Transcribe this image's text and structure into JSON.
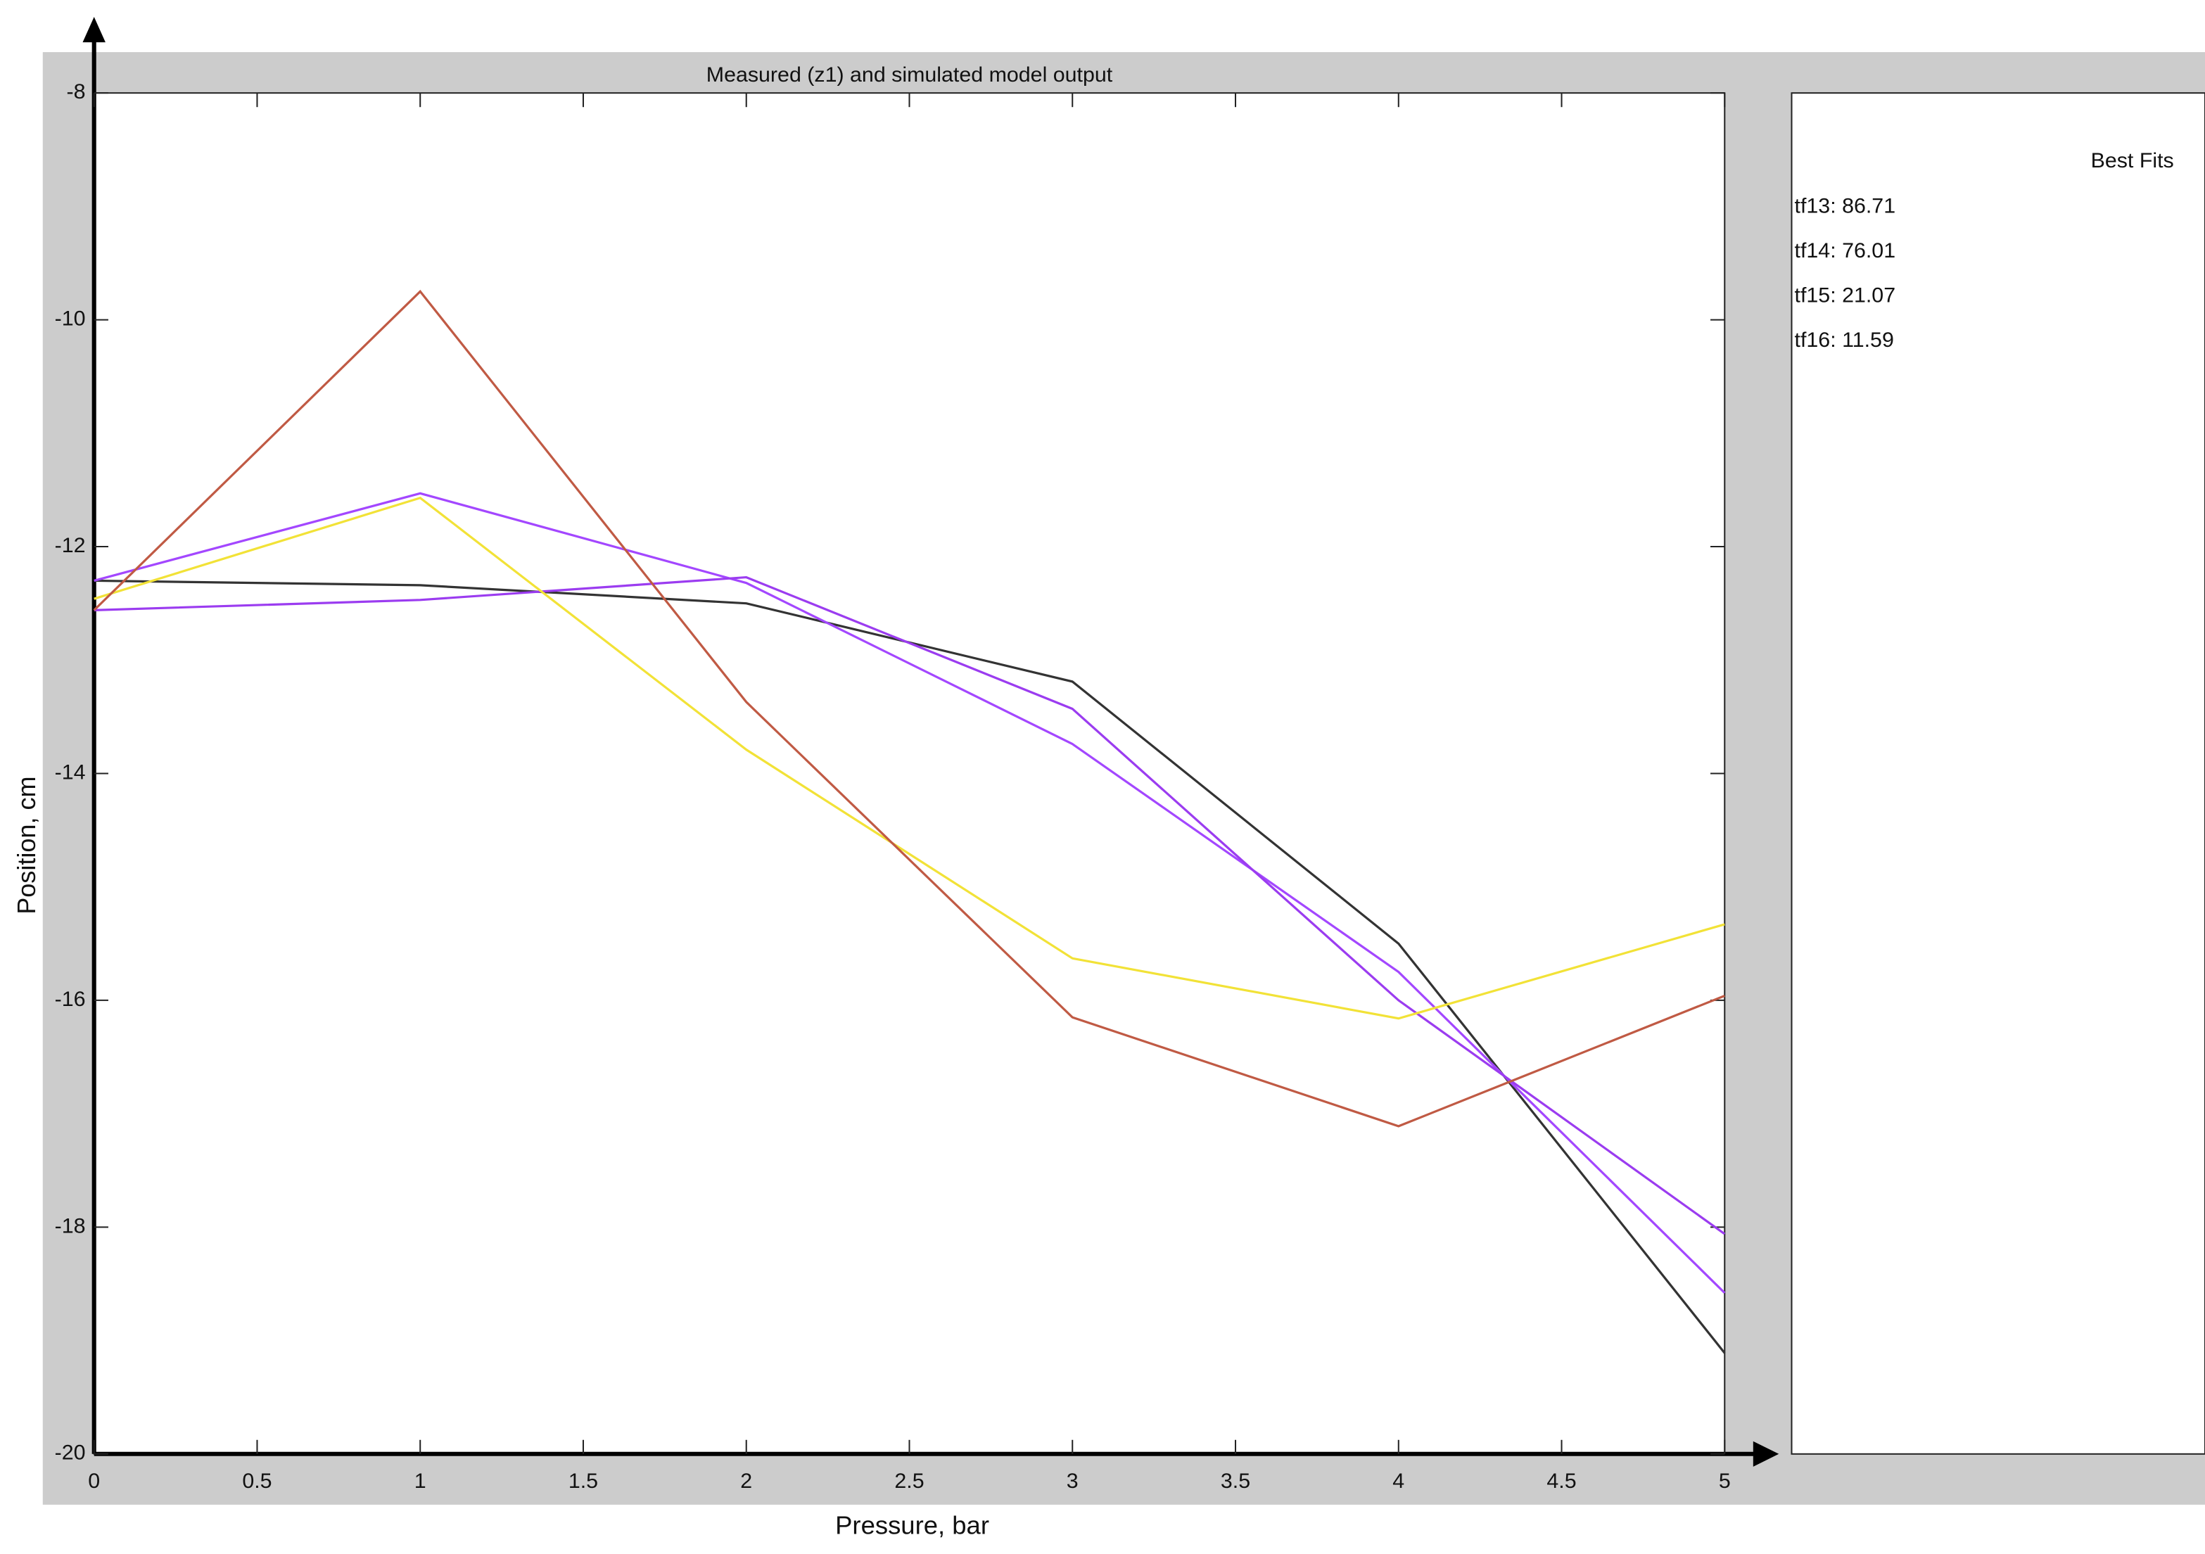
{
  "chart_data": {
    "type": "line",
    "title": "Measured (z1) and simulated model output",
    "x_label": "Pressure, bar",
    "y_label": "Position, cm",
    "legend_title": "Best Fits",
    "x": [
      0,
      1,
      2,
      3,
      4,
      5
    ],
    "series": [
      {
        "color": "#333333",
        "values": [
          -12.3,
          -12.34,
          -12.5,
          -13.19,
          -15.5,
          -19.11
        ]
      },
      {
        "name": "tf13: 86.71",
        "color": "#a347ff",
        "values": [
          -12.3,
          -11.53,
          -12.32,
          -13.74,
          -15.75,
          -18.58
        ]
      },
      {
        "name": "tf14: 76.01",
        "color": "#9b3cf0",
        "values": [
          -12.56,
          -12.47,
          -12.27,
          -13.43,
          -16.0,
          -18.06
        ]
      },
      {
        "name": "tf15: 21.07",
        "color": "#f2e237",
        "values": [
          -12.46,
          -11.57,
          -13.79,
          -15.63,
          -16.16,
          -15.33
        ]
      },
      {
        "name": "tf16: 11.59",
        "color": "#c05a44",
        "values": [
          -12.56,
          -9.75,
          -13.37,
          -16.15,
          -17.11,
          -15.96
        ]
      }
    ],
    "xlim": [
      0,
      5
    ],
    "xticks": [
      0,
      0.5,
      1,
      1.5,
      2,
      2.5,
      3,
      3.5,
      4,
      4.5,
      5
    ],
    "ylim": [
      -20,
      -8
    ],
    "yticks": [
      -20,
      -18,
      -16,
      -14,
      -12,
      -10,
      -8
    ],
    "grid": false
  }
}
